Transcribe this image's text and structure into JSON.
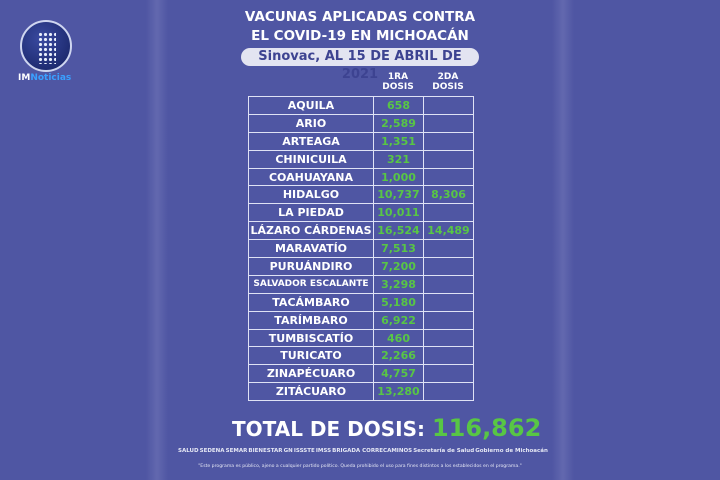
{
  "brand": {
    "logo_text_a": "IM",
    "logo_text_b": "Noticias"
  },
  "header": {
    "title_line1": "VACUNAS APLICADAS CONTRA",
    "title_line2": "EL COVID-19 EN MICHOACÁN",
    "subtitle": "Sinovac, AL 15 DE ABRIL DE 2021"
  },
  "table": {
    "columns": [
      "1RA DOSIS",
      "2DA DOSIS"
    ],
    "rows": [
      {
        "municipio": "AQUILA",
        "dosis1": "658",
        "dosis2": ""
      },
      {
        "municipio": "ARIO",
        "dosis1": "2,589",
        "dosis2": ""
      },
      {
        "municipio": "ARTEAGA",
        "dosis1": "1,351",
        "dosis2": ""
      },
      {
        "municipio": "CHINICUILA",
        "dosis1": "321",
        "dosis2": ""
      },
      {
        "municipio": "COAHUAYANA",
        "dosis1": "1,000",
        "dosis2": ""
      },
      {
        "municipio": "HIDALGO",
        "dosis1": "10,737",
        "dosis2": "8,306"
      },
      {
        "municipio": "LA PIEDAD",
        "dosis1": "10,011",
        "dosis2": ""
      },
      {
        "municipio": "LÁZARO CÁRDENAS",
        "dosis1": "16,524",
        "dosis2": "14,489"
      },
      {
        "municipio": "MARAVATÍO",
        "dosis1": "7,513",
        "dosis2": ""
      },
      {
        "municipio": "PURUÁNDIRO",
        "dosis1": "7,200",
        "dosis2": ""
      },
      {
        "municipio": "SALVADOR ESCALANTE",
        "dosis1": "3,298",
        "dosis2": ""
      },
      {
        "municipio": "TACÁMBARO",
        "dosis1": "5,180",
        "dosis2": ""
      },
      {
        "municipio": "TARÍMBARO",
        "dosis1": "6,922",
        "dosis2": ""
      },
      {
        "municipio": "TUMBISCATÍO",
        "dosis1": "460",
        "dosis2": ""
      },
      {
        "municipio": "TURICATO",
        "dosis1": "2,266",
        "dosis2": ""
      },
      {
        "municipio": "ZINAPÉCUARO",
        "dosis1": "4,757",
        "dosis2": ""
      },
      {
        "municipio": "ZITÁCUARO",
        "dosis1": "13,280",
        "dosis2": ""
      }
    ]
  },
  "total": {
    "label": "TOTAL DE DOSIS:",
    "value": "116,862"
  },
  "footer": {
    "logos": [
      "SALUD",
      "SEDENA",
      "SEMAR",
      "BIENESTAR",
      "GN",
      "ISSSTE",
      "IMSS",
      "BRIGADA CORRECAMINOS",
      "Secretaría de Salud",
      "Gobierno de Michoacán"
    ],
    "disclaimer": "\"Este programa es público, ajeno a cualquier partido político. Queda prohibido el uso para fines distintos a los establecidos en el programa.\""
  },
  "colors": {
    "background": "#4f56a3",
    "value_green": "#58c645",
    "subtitle_bg": "#e3e4f1"
  }
}
